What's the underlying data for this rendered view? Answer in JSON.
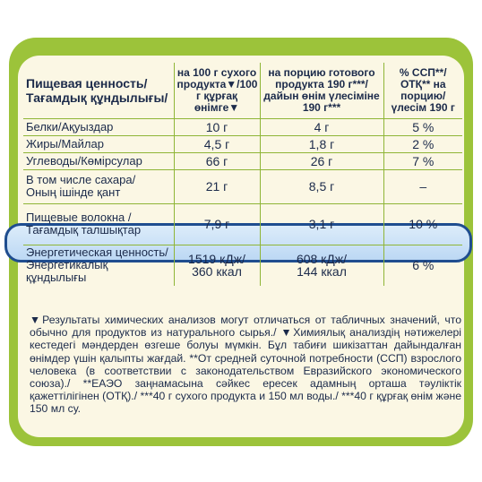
{
  "table": {
    "header": {
      "name": "Пищевая ценность/\nТағамдық құндылығы/",
      "col1": "на 100 г сухого продукта▼/100 г құрғақ өнімге▼",
      "col2": "на порцию готового продукта 190 г***/дайын өнім үлесіміне 190 г***",
      "col3": "% ССП**/ОТҚ** на порцию/ үлесім 190 г"
    },
    "rows": [
      {
        "name": "Белки/Ақуыздар",
        "per100": "10 г",
        "portion": "4 г",
        "percent": "5 %"
      },
      {
        "name": "Жиры/Майлар",
        "per100": "4,5 г",
        "portion": "1,8 г",
        "percent": "2 %"
      },
      {
        "name": "Углеводы/Көмірсулар",
        "per100": "66 г",
        "portion": "26 г",
        "percent": "7 %"
      },
      {
        "name": "В том числе сахара/\nОның ішінде қант",
        "per100": "21 г",
        "portion": "8,5 г",
        "percent": "–"
      },
      {
        "name": "Пищевые волокна /\nТағамдық талшықтар",
        "per100": "7,9 г",
        "portion": "3,1 г",
        "percent": "10 %"
      },
      {
        "name": "Энергетическая ценность/\nЭнергетикалық құндылығы",
        "per100": "1519 кДж/\n360 ккал",
        "portion": "608 кДж/\n144 ккал",
        "percent": "6 %"
      }
    ]
  },
  "footnote": "▼Результаты химических анализов могут отличаться от табличных значений, что обычно для продуктов из натурального сырья./ ▼Химиялық анализдің нәтижелері кестедегі мәндерден өзгеше болуы мүмкін. Бұл табиғи шикізаттан дайындалған өнімдер үшін қалыпты жағдай. **От средней суточной потребности (ССП) взрослого человека (в соответствии с законодательством Евразийского экономического союза)./ **ЕАЭО заңнамасына сәйкес ересек адамның орташа тәуліктік қажеттілігінен (ОТҚ)./ ***40 г сухого продукта и 150 мл воды./ ***40 г құрғақ өнім және 150 мл су.",
  "colors": {
    "outer": "#9cc33a",
    "inner": "#fbf7e4",
    "lines": "#8fb537",
    "highlight_border": "#1f4d8f",
    "text": "#1b2a4a"
  }
}
